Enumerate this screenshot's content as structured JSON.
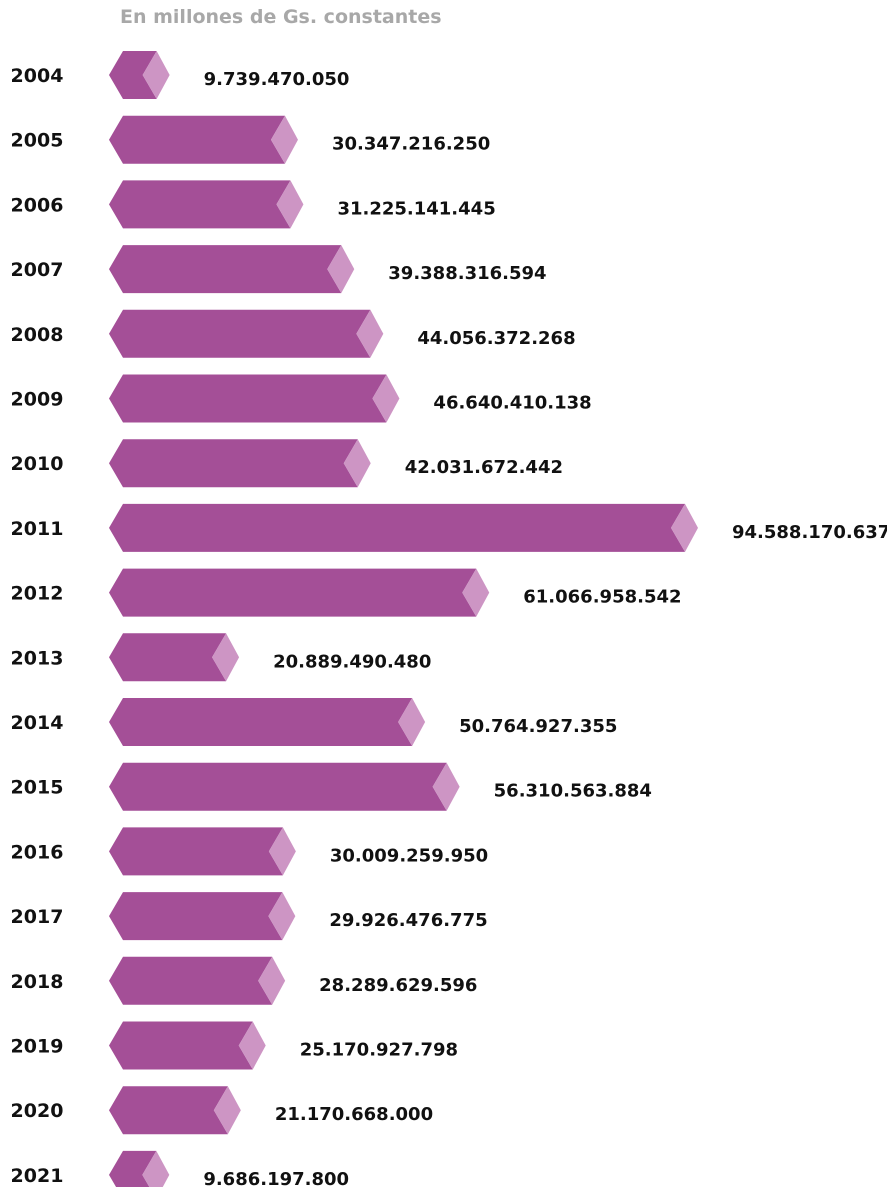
{
  "chart_data": {
    "type": "bar",
    "orientation": "horizontal",
    "subtitle": "En millones de Gs. constantes",
    "categories": [
      "2004",
      "2005",
      "2006",
      "2007",
      "2008",
      "2009",
      "2010",
      "2011",
      "2012",
      "2013",
      "2014",
      "2015",
      "2016",
      "2017",
      "2018",
      "2019",
      "2020",
      "2021"
    ],
    "values": [
      9739470050,
      30347216250,
      31225141445,
      39388316594,
      44056372268,
      46640410138,
      42031672442,
      94588170637,
      61066958542,
      20889490480,
      50764927355,
      56310563884,
      30009259950,
      29926476775,
      28289629596,
      25170927798,
      21170668000,
      9686197800
    ],
    "value_labels": [
      "9.739.470.050",
      "30.347.216.250",
      "31.225.141.445",
      "39.388.316.594",
      "44.056.372.268",
      "46.640.410.138",
      "42.031.672.442",
      "94.588.170.637",
      "61.066.958.542",
      "20.889.490.480",
      "50.764.927.355",
      "56.310.563.884",
      "30.009.259.950",
      "29.926.476.775",
      "28.289.629.596",
      "25.170.927.798",
      "21.170.668.000",
      "9.686.197.800"
    ],
    "colors": {
      "bar": "#a44f97",
      "bar_tip": "#cd95c4",
      "text": "#111111",
      "subtitle": "#a8a8a8"
    }
  }
}
